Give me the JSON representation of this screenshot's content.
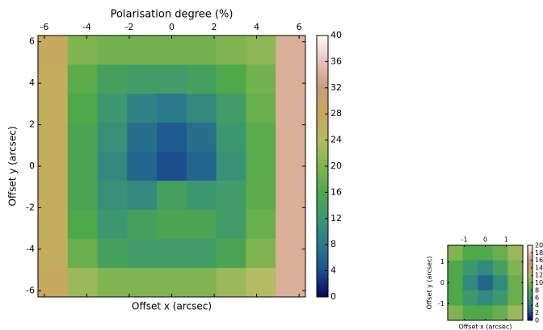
{
  "chart_data": [
    {
      "type": "heatmap",
      "title": "Polarisation degree (%)",
      "xlabel": "Offset x (arcsec)",
      "ylabel": "Offset y (arcsec)",
      "x": [
        -5.6,
        -4.2,
        -2.8,
        -1.4,
        0,
        1.4,
        2.8,
        4.2,
        5.6
      ],
      "y": [
        5.6,
        4.2,
        2.8,
        1.4,
        0,
        -1.4,
        -2.8,
        -4.2,
        -5.6
      ],
      "z": [
        [
          28,
          20,
          19,
          19,
          19,
          19,
          20,
          21,
          34
        ],
        [
          27,
          17,
          14,
          13,
          13,
          14,
          16,
          19,
          34
        ],
        [
          27,
          16,
          12,
          9,
          8,
          10,
          13,
          18,
          34
        ],
        [
          27,
          15,
          11,
          7,
          5,
          7,
          12,
          17,
          34
        ],
        [
          27,
          15,
          10,
          6,
          4,
          6,
          11,
          17,
          34
        ],
        [
          27,
          15,
          11,
          10,
          14,
          12,
          13,
          17,
          34
        ],
        [
          27,
          16,
          12,
          14,
          15,
          15,
          13,
          18,
          34
        ],
        [
          27,
          18,
          14,
          13,
          13,
          13,
          15,
          20,
          34
        ],
        [
          28,
          22,
          20,
          20,
          20,
          20,
          22,
          24,
          34
        ]
      ],
      "xlim": [
        -6.3,
        6.3
      ],
      "ylim": [
        -6.3,
        6.3
      ],
      "xticks": [
        -6,
        -4,
        -2,
        0,
        2,
        4,
        6
      ],
      "yticks": [
        -6,
        -4,
        -2,
        0,
        2,
        4,
        6
      ],
      "clim": [
        0,
        40
      ],
      "cticks": [
        0,
        4,
        8,
        12,
        16,
        20,
        24,
        28,
        32,
        36,
        40
      ],
      "colormap": [
        "#07075e",
        "#1d4f8e",
        "#2b7a8c",
        "#3c9870",
        "#4fa84a",
        "#80b450",
        "#b4bb62",
        "#c6a85e",
        "#cc9a78",
        "#e6c3b8",
        "#fdfbfb"
      ]
    },
    {
      "type": "heatmap",
      "xlabel": "Offset x (arcsec)",
      "ylabel": "Offset y (arcsec)",
      "x": [
        -1.44,
        -0.72,
        0,
        0.72,
        1.44
      ],
      "y": [
        1.44,
        0.72,
        0,
        -0.72,
        -1.44
      ],
      "z": [
        [
          10,
          8,
          8,
          9,
          11
        ],
        [
          8,
          6,
          5,
          7,
          10
        ],
        [
          8,
          5,
          3,
          5,
          9
        ],
        [
          8,
          6,
          5,
          6,
          9
        ],
        [
          10,
          8,
          8,
          9,
          11
        ]
      ],
      "xlim": [
        -1.8,
        1.8
      ],
      "ylim": [
        -1.8,
        1.8
      ],
      "xticks": [
        -1,
        0,
        1
      ],
      "yticks": [
        -1,
        0,
        1
      ],
      "clim": [
        0,
        20
      ],
      "cticks": [
        0,
        2,
        4,
        6,
        8,
        10,
        12,
        14,
        16,
        18,
        20
      ],
      "colormap": [
        "#07075e",
        "#1d4f8e",
        "#2b7a8c",
        "#3c9870",
        "#4fa84a",
        "#80b450",
        "#b4bb62",
        "#c6a85e",
        "#cc9a78",
        "#e6c3b8",
        "#fdfbfb"
      ]
    }
  ]
}
